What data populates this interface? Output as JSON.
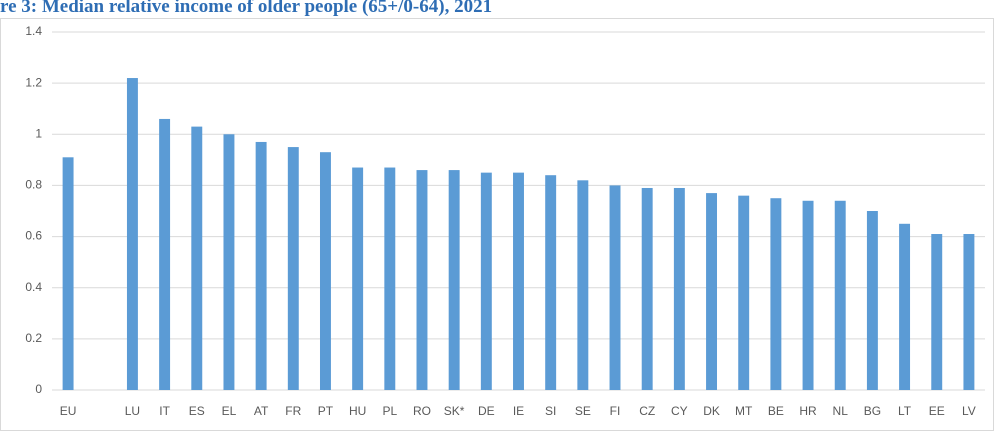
{
  "chart_data": {
    "type": "bar",
    "title": "re 3: Median relative income of older  people (65+/0-64), 2021",
    "categories": [
      "EU",
      null,
      "LU",
      "IT",
      "ES",
      "EL",
      "AT",
      "FR",
      "PT",
      "HU",
      "PL",
      "RO",
      "SK*",
      "DE",
      "IE",
      "SI",
      "SE",
      "FI",
      "CZ",
      "CY",
      "DK",
      "MT",
      "BE",
      "HR",
      "NL",
      "BG",
      "LT",
      "EE",
      "LV"
    ],
    "values": [
      0.91,
      null,
      1.22,
      1.06,
      1.03,
      1.0,
      0.97,
      0.95,
      0.93,
      0.87,
      0.87,
      0.86,
      0.86,
      0.85,
      0.85,
      0.84,
      0.82,
      0.8,
      0.79,
      0.79,
      0.77,
      0.76,
      0.75,
      0.74,
      0.74,
      0.7,
      0.65,
      0.61,
      0.61
    ],
    "color": "#5b9bd5",
    "ylim": [
      0,
      1.4
    ],
    "yticks": [
      0,
      0.2,
      0.4,
      0.6,
      0.8,
      1,
      1.2,
      1.4
    ],
    "grid": true
  }
}
